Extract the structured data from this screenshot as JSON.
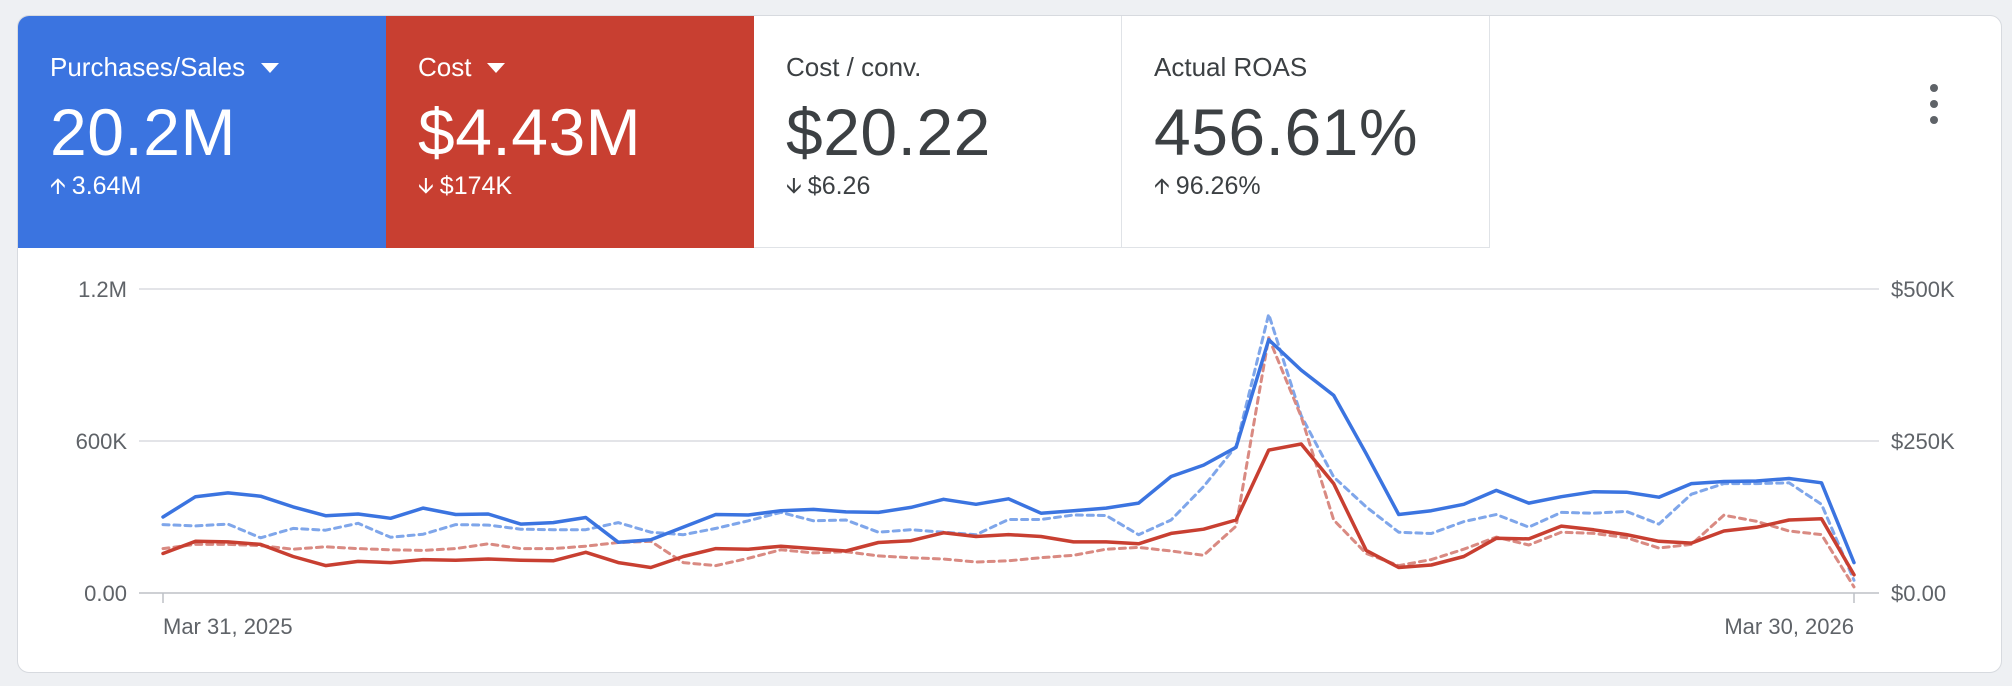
{
  "tiles": [
    {
      "label": "Purchases/Sales",
      "value": "20.2M",
      "delta": "3.64M",
      "direction": "up",
      "dropdown": true,
      "bg": "#3b74e0"
    },
    {
      "label": "Cost",
      "value": "$4.43M",
      "delta": "$174K",
      "direction": "down",
      "dropdown": true,
      "bg": "#c83f31"
    },
    {
      "label": "Cost / conv.",
      "value": "$20.22",
      "delta": "$6.26",
      "direction": "down",
      "dropdown": false,
      "bg": "#ffffff"
    },
    {
      "label": "Actual ROAS",
      "value": "456.61%",
      "delta": "96.26%",
      "direction": "up",
      "dropdown": false,
      "bg": "#ffffff"
    }
  ],
  "menu_icon": "more-vert-icon",
  "chart_data": {
    "type": "line",
    "x_start_label": "Mar 31, 2025",
    "x_end_label": "Mar 30, 2026",
    "y_left": {
      "ticks": [
        "0.00",
        "600K",
        "1.2M"
      ],
      "range": [
        0,
        1200000
      ]
    },
    "y_right": {
      "ticks": [
        "$0.00",
        "$250K",
        "$500K"
      ],
      "range": [
        0,
        500000
      ]
    },
    "grid": true,
    "legend": "none",
    "series": [
      {
        "axis": "left",
        "color": "#3b74e0",
        "dashed": false,
        "values": [
          300000,
          380000,
          395000,
          382000,
          340000,
          305000,
          312000,
          295000,
          335000,
          310000,
          312000,
          272000,
          278000,
          298000,
          200000,
          210000,
          260000,
          310000,
          308000,
          325000,
          330000,
          320000,
          318000,
          338000,
          370000,
          350000,
          372000,
          315000,
          325000,
          335000,
          355000,
          460000,
          505000,
          575000,
          1000000,
          880000,
          780000,
          550000,
          310000,
          325000,
          350000,
          405000,
          355000,
          380000,
          400000,
          398000,
          378000,
          432000,
          440000,
          442000,
          452000,
          435000,
          120000
        ]
      },
      {
        "axis": "left",
        "color": "#7fa6ea",
        "dashed": true,
        "values": [
          270000,
          265000,
          272000,
          218000,
          255000,
          248000,
          275000,
          220000,
          232000,
          270000,
          268000,
          252000,
          250000,
          250000,
          278000,
          240000,
          230000,
          255000,
          285000,
          318000,
          285000,
          288000,
          240000,
          250000,
          240000,
          230000,
          290000,
          290000,
          308000,
          306000,
          230000,
          288000,
          420000,
          580000,
          1100000,
          700000,
          458000,
          340000,
          240000,
          235000,
          282000,
          310000,
          260000,
          318000,
          315000,
          322000,
          272000,
          390000,
          432000,
          432000,
          435000,
          350000,
          50000
        ]
      },
      {
        "axis": "right",
        "color": "#c83f31",
        "dashed": false,
        "values": [
          65000,
          85000,
          84000,
          80000,
          60000,
          45000,
          52000,
          50000,
          55000,
          54000,
          56000,
          54000,
          53000,
          67000,
          50000,
          42000,
          60000,
          73000,
          72000,
          77000,
          73000,
          69000,
          83000,
          86000,
          99000,
          93000,
          96000,
          93000,
          84000,
          84000,
          81000,
          98000,
          105000,
          120000,
          235000,
          245000,
          180000,
          70000,
          42000,
          46000,
          60000,
          90000,
          89000,
          110000,
          104000,
          96000,
          85000,
          82000,
          102000,
          108000,
          120000,
          122000,
          30000
        ]
      },
      {
        "axis": "right",
        "color": "#d98a82",
        "dashed": true,
        "values": [
          73000,
          80000,
          80000,
          78000,
          72000,
          76000,
          73000,
          71000,
          70000,
          73000,
          81000,
          73000,
          73000,
          77000,
          83000,
          85000,
          50000,
          45000,
          57000,
          71000,
          66000,
          68000,
          61000,
          58000,
          56000,
          51000,
          53000,
          58000,
          62000,
          72000,
          75000,
          69000,
          62000,
          110000,
          420000,
          290000,
          120000,
          65000,
          45000,
          55000,
          72000,
          92000,
          79000,
          100000,
          98000,
          91000,
          74000,
          80000,
          128000,
          118000,
          102000,
          96000,
          10000
        ]
      }
    ]
  }
}
